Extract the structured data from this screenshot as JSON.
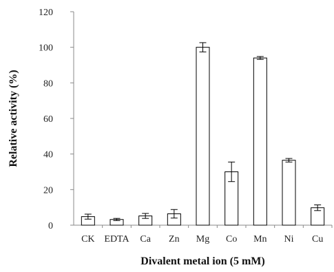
{
  "chart_data": {
    "type": "bar",
    "title": "",
    "xlabel": "Divalent metal ion (5 mM)",
    "ylabel": "Relative activity (%)",
    "ylim": [
      0,
      120
    ],
    "yticks": [
      0,
      20,
      40,
      60,
      80,
      100,
      120
    ],
    "categories": [
      "CK",
      "EDTA",
      "Ca",
      "Zn",
      "Mg",
      "Co",
      "Mn",
      "Ni",
      "Cu"
    ],
    "series": [
      {
        "values": [
          4.8,
          3.2,
          5.2,
          6.4,
          100,
          30,
          94,
          36.5,
          9.8
        ],
        "errors": [
          1.4,
          0.6,
          1.4,
          2.4,
          2.6,
          5.5,
          0.8,
          1.0,
          1.6
        ]
      }
    ],
    "bar_fill": "#ffffff",
    "bar_stroke": "#000000",
    "grid": false,
    "legend": "none"
  }
}
